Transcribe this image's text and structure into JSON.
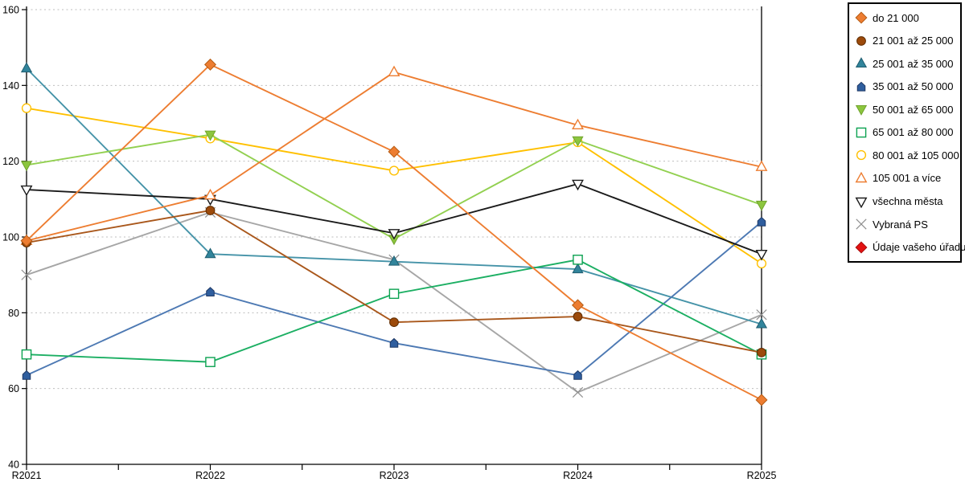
{
  "chart_data": {
    "type": "line",
    "title": "",
    "xlabel": "",
    "ylabel": "",
    "categories": [
      "R2021",
      "R2022",
      "R2023",
      "R2024",
      "R2025"
    ],
    "ylim": [
      40,
      160
    ],
    "yticks": [
      40,
      60,
      80,
      100,
      120,
      140,
      160
    ],
    "grid": "horizontal-dashed",
    "grid_color": "#BDBDBD",
    "legend_position": "right",
    "series": [
      {
        "name": "do 21 000",
        "marker": "diamond",
        "fill": true,
        "color": "#ED7D31",
        "marker_fill": "#ED7D31",
        "marker_stroke": "#B55B13",
        "values": [
          99,
          145.5,
          122.5,
          82,
          57
        ]
      },
      {
        "name": "21 001 až 25 000",
        "marker": "circle",
        "fill": true,
        "color": "#A9571B",
        "marker_fill": "#9C4A0B",
        "marker_stroke": "#5F2C00",
        "values": [
          98.5,
          107,
          77.5,
          79,
          69.5
        ]
      },
      {
        "name": "25 001 až 35 000",
        "marker": "triangle-up",
        "fill": true,
        "color": "#4593A8",
        "marker_fill": "#31849B",
        "marker_stroke": "#1F5D70",
        "values": [
          144.5,
          95.5,
          93.5,
          91.5,
          77
        ]
      },
      {
        "name": "35 001 až 50 000",
        "marker": "house",
        "fill": true,
        "color": "#4D79B3",
        "marker_fill": "#2F5E9E",
        "marker_stroke": "#1F3864",
        "values": [
          63.5,
          85.5,
          72,
          63.5,
          104
        ]
      },
      {
        "name": "50 001 až 65 000",
        "marker": "triangle-down",
        "fill": true,
        "color": "#92D050",
        "marker_fill": "#8CC63E",
        "marker_stroke": "#70A32C",
        "values": [
          119,
          127,
          99.5,
          125.5,
          108.5
        ]
      },
      {
        "name": "65 001 až 80 000",
        "marker": "square",
        "fill": false,
        "color": "#1CAF63",
        "marker_fill": "#FFFFFF",
        "marker_stroke": "#0CA251",
        "values": [
          69,
          67,
          85,
          94,
          69
        ]
      },
      {
        "name": "80 001 až 105 000",
        "marker": "circle",
        "fill": false,
        "color": "#FFC000",
        "marker_fill": "#FFFFFF",
        "marker_stroke": "#FFC000",
        "values": [
          134,
          126,
          117.5,
          125,
          93
        ]
      },
      {
        "name": "105 001 a více",
        "marker": "triangle-up",
        "fill": false,
        "color": "#ED7D31",
        "marker_fill": "#FFFFFF",
        "marker_stroke": "#ED7D31",
        "values": [
          99,
          111,
          143.5,
          129.5,
          118.5
        ]
      },
      {
        "name": "všechna města",
        "marker": "triangle-down",
        "fill": false,
        "color": "#1A1A1A",
        "marker_fill": "#FFFFFF",
        "marker_stroke": "#1A1A1A",
        "values": [
          112.5,
          110,
          101,
          114,
          95.5
        ]
      },
      {
        "name": "Vybraná PS",
        "marker": "x",
        "fill": false,
        "color": "#A6A6A6",
        "marker_fill": "none",
        "marker_stroke": "#8F8F8F",
        "values": [
          90,
          106.5,
          94,
          59,
          79.5
        ]
      },
      {
        "name": "Údaje vašeho úřadu",
        "marker": "diamond",
        "fill": true,
        "color": "#E31212",
        "marker_fill": "#E31212",
        "marker_stroke": "#A80D0D",
        "values": []
      }
    ]
  }
}
